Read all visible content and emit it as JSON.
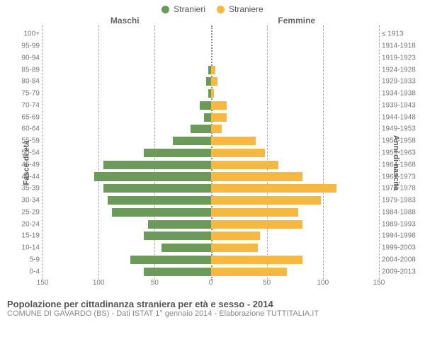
{
  "legend": {
    "male": {
      "label": "Stranieri",
      "color": "#6c9a5b"
    },
    "female": {
      "label": "Straniere",
      "color": "#f5b942"
    }
  },
  "side_titles": {
    "left": "Maschi",
    "right": "Femmine"
  },
  "y_left_title": "Fasce di età",
  "y_right_title": "Anni di nascita",
  "xlim": 150,
  "xticks": [
    150,
    100,
    50,
    0,
    50,
    100,
    150
  ],
  "grid_color": "#999999",
  "background_color": "#ffffff",
  "chart": {
    "type": "population-pyramid",
    "bar_fill_pct": 72,
    "rows": [
      {
        "age": "100+",
        "birth": "≤ 1913",
        "m": 0,
        "f": 0
      },
      {
        "age": "95-99",
        "birth": "1914-1918",
        "m": 0,
        "f": 0
      },
      {
        "age": "90-94",
        "birth": "1919-1923",
        "m": 0,
        "f": 0
      },
      {
        "age": "85-89",
        "birth": "1924-1928",
        "m": 2,
        "f": 4
      },
      {
        "age": "80-84",
        "birth": "1929-1933",
        "m": 4,
        "f": 6
      },
      {
        "age": "75-79",
        "birth": "1934-1938",
        "m": 2,
        "f": 3
      },
      {
        "age": "70-74",
        "birth": "1939-1943",
        "m": 10,
        "f": 14
      },
      {
        "age": "65-69",
        "birth": "1944-1948",
        "m": 6,
        "f": 14
      },
      {
        "age": "60-64",
        "birth": "1949-1953",
        "m": 18,
        "f": 10
      },
      {
        "age": "55-59",
        "birth": "1954-1958",
        "m": 34,
        "f": 40
      },
      {
        "age": "50-54",
        "birth": "1959-1963",
        "m": 60,
        "f": 48
      },
      {
        "age": "45-49",
        "birth": "1964-1968",
        "m": 96,
        "f": 60
      },
      {
        "age": "40-44",
        "birth": "1969-1973",
        "m": 104,
        "f": 82
      },
      {
        "age": "35-39",
        "birth": "1974-1978",
        "m": 96,
        "f": 112
      },
      {
        "age": "30-34",
        "birth": "1979-1983",
        "m": 92,
        "f": 98
      },
      {
        "age": "25-29",
        "birth": "1984-1988",
        "m": 88,
        "f": 78
      },
      {
        "age": "20-24",
        "birth": "1989-1993",
        "m": 56,
        "f": 82
      },
      {
        "age": "15-19",
        "birth": "1994-1998",
        "m": 60,
        "f": 44
      },
      {
        "age": "10-14",
        "birth": "1999-2003",
        "m": 44,
        "f": 42
      },
      {
        "age": "5-9",
        "birth": "2004-2008",
        "m": 72,
        "f": 82
      },
      {
        "age": "0-4",
        "birth": "2009-2013",
        "m": 60,
        "f": 68
      }
    ]
  },
  "footer": {
    "title": "Popolazione per cittadinanza straniera per età e sesso - 2014",
    "sub": "COMUNE DI GAVARDO (BS) - Dati ISTAT 1° gennaio 2014 - Elaborazione TUTTITALIA.IT"
  }
}
